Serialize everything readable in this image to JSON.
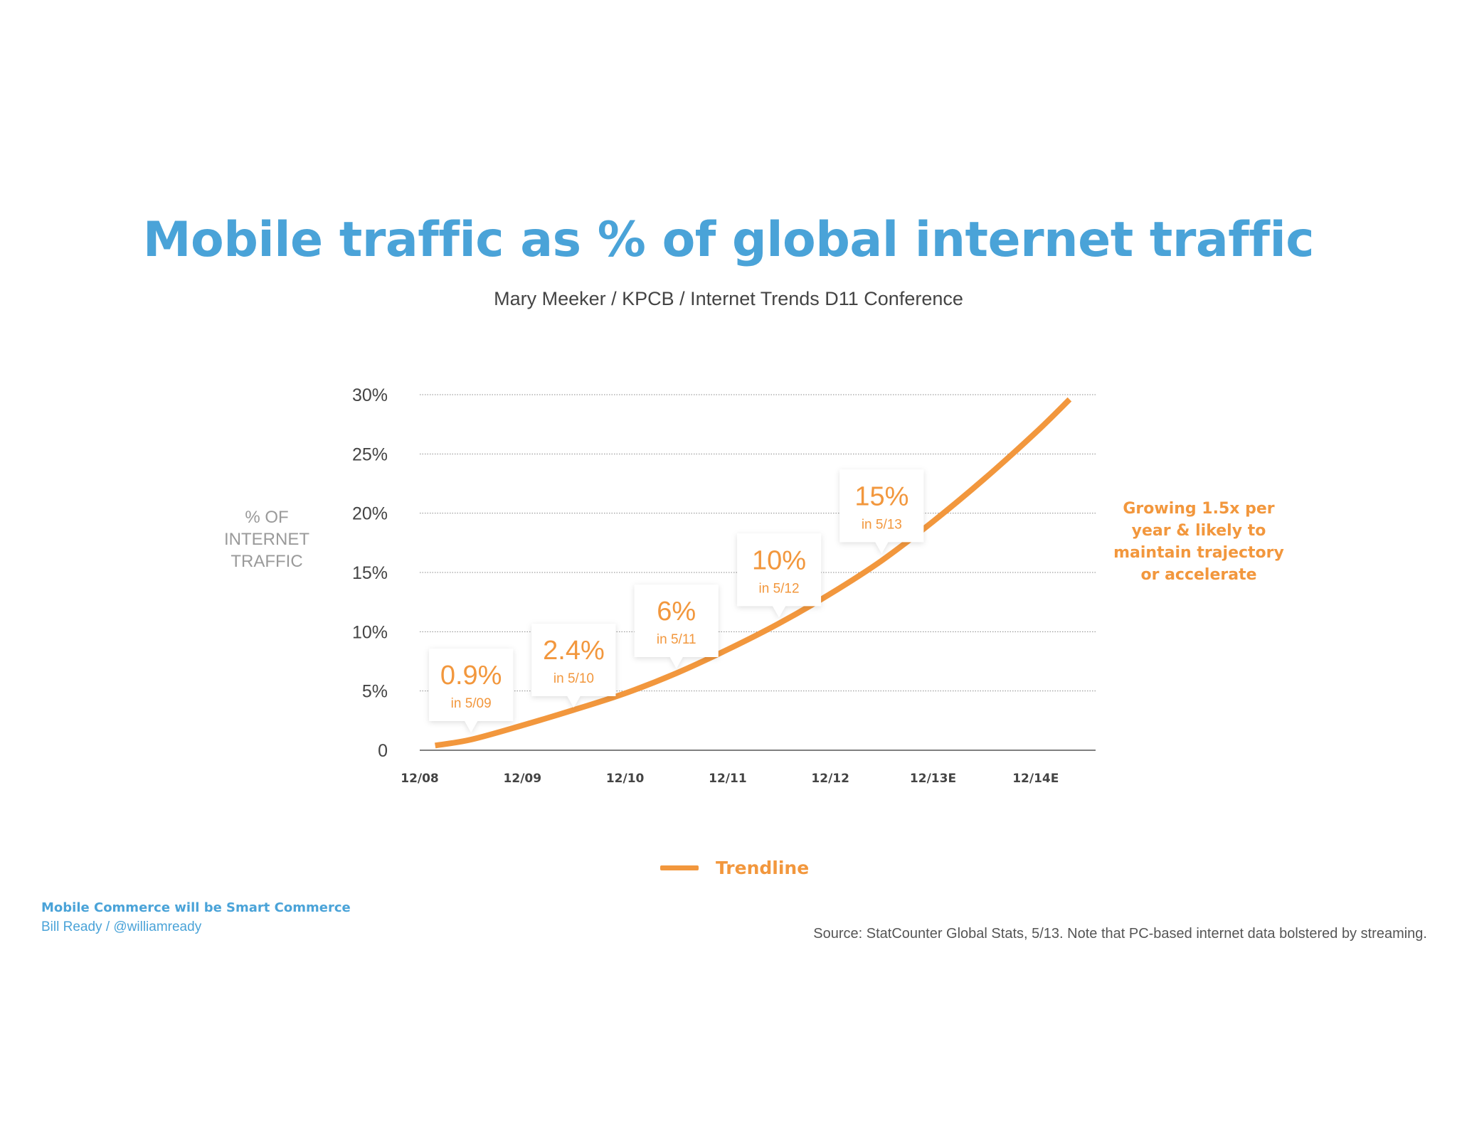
{
  "header": {
    "title": "Mobile traffic as % of global internet traffic",
    "subtitle": "Mary Meeker / KPCB / Internet Trends D11 Conference"
  },
  "colors": {
    "accent_orange": "#f2973d",
    "accent_blue": "#4aa3d8"
  },
  "side_note": "Growing 1.5x per year & likely to maintain trajectory or accelerate",
  "legend": {
    "label": "Trendline"
  },
  "footer": {
    "title": "Mobile Commerce will be Smart Commerce",
    "author": "Bill Ready / @williamready",
    "source": "Source: StatCounter Global Stats, 5/13. Note that PC-based internet data bolstered by streaming."
  },
  "chart_data": {
    "type": "line",
    "title": "Mobile traffic as % of global internet traffic",
    "subtitle": "Mary Meeker / KPCB / Internet Trends D11 Conference",
    "ylabel": "% OF INTERNET TRAFFIC",
    "xlabel": "",
    "ylim": [
      0,
      30
    ],
    "xlim": [
      0,
      6.65
    ],
    "y_ticks": [
      0,
      5,
      10,
      15,
      20,
      25,
      30
    ],
    "y_tick_labels": [
      "0",
      "5%",
      "10%",
      "15%",
      "20%",
      "25%",
      "30%"
    ],
    "x_ticks": [
      0,
      1,
      2,
      3,
      4,
      5,
      6
    ],
    "x_tick_labels": [
      "12/08",
      "12/09",
      "12/10",
      "12/11",
      "12/12",
      "12/13E",
      "12/14E"
    ],
    "grid": true,
    "legend_position": "bottom-center",
    "series": [
      {
        "name": "Trendline",
        "x": [
          0.15,
          0.5,
          1.0,
          1.5,
          2.0,
          2.5,
          3.0,
          3.5,
          4.0,
          4.5,
          5.0,
          5.5,
          6.0,
          6.33
        ],
        "y": [
          0.4,
          0.9,
          2.1,
          3.4,
          4.8,
          6.5,
          8.5,
          10.7,
          13.2,
          16.0,
          19.3,
          22.9,
          26.8,
          29.6
        ]
      }
    ],
    "annotations": [
      {
        "value": "0.9%",
        "date": "in 5/09",
        "x": 0.5,
        "y": 0.9
      },
      {
        "value": "2.4%",
        "date": "in 5/10",
        "x": 1.5,
        "y": 3.0
      },
      {
        "value": "6%",
        "date": "in 5/11",
        "x": 2.5,
        "y": 6.3
      },
      {
        "value": "10%",
        "date": "in 5/12",
        "x": 3.5,
        "y": 10.6
      },
      {
        "value": "15%",
        "date": "in 5/13",
        "x": 4.5,
        "y": 16.0
      }
    ]
  }
}
